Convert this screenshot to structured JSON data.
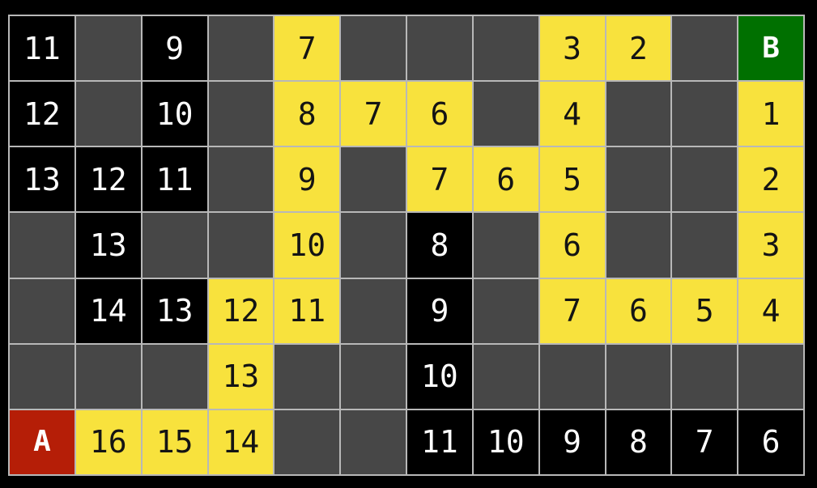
{
  "colors": {
    "background": "#000000",
    "gridline": "#b8b8b8",
    "wall": "#474747",
    "explored": "#000000",
    "explored_text": "#ffffff",
    "path": "#f8e23d",
    "path_text": "#141414",
    "start": "#b51e07",
    "goal": "#007000",
    "start_goal_text": "#ffffff"
  },
  "grid": {
    "cols": 12,
    "rows_count": 7,
    "start_label": "A",
    "goal_label": "B",
    "rows": [
      [
        {
          "v": "11",
          "t": "explored"
        },
        {
          "v": "",
          "t": "wall"
        },
        {
          "v": "9",
          "t": "explored"
        },
        {
          "v": "",
          "t": "wall"
        },
        {
          "v": "7",
          "t": "path"
        },
        {
          "v": "",
          "t": "wall"
        },
        {
          "v": "",
          "t": "wall"
        },
        {
          "v": "",
          "t": "wall"
        },
        {
          "v": "3",
          "t": "path"
        },
        {
          "v": "2",
          "t": "path"
        },
        {
          "v": "",
          "t": "wall"
        },
        {
          "v": "B",
          "t": "goal"
        }
      ],
      [
        {
          "v": "12",
          "t": "explored"
        },
        {
          "v": "",
          "t": "wall"
        },
        {
          "v": "10",
          "t": "explored"
        },
        {
          "v": "",
          "t": "wall"
        },
        {
          "v": "8",
          "t": "path"
        },
        {
          "v": "7",
          "t": "path"
        },
        {
          "v": "6",
          "t": "path"
        },
        {
          "v": "",
          "t": "wall"
        },
        {
          "v": "4",
          "t": "path"
        },
        {
          "v": "",
          "t": "wall"
        },
        {
          "v": "",
          "t": "wall"
        },
        {
          "v": "1",
          "t": "path"
        }
      ],
      [
        {
          "v": "13",
          "t": "explored"
        },
        {
          "v": "12",
          "t": "explored"
        },
        {
          "v": "11",
          "t": "explored"
        },
        {
          "v": "",
          "t": "wall"
        },
        {
          "v": "9",
          "t": "path"
        },
        {
          "v": "",
          "t": "wall"
        },
        {
          "v": "7",
          "t": "path"
        },
        {
          "v": "6",
          "t": "path"
        },
        {
          "v": "5",
          "t": "path"
        },
        {
          "v": "",
          "t": "wall"
        },
        {
          "v": "",
          "t": "wall"
        },
        {
          "v": "2",
          "t": "path"
        }
      ],
      [
        {
          "v": "",
          "t": "wall"
        },
        {
          "v": "13",
          "t": "explored"
        },
        {
          "v": "",
          "t": "wall"
        },
        {
          "v": "",
          "t": "wall"
        },
        {
          "v": "10",
          "t": "path"
        },
        {
          "v": "",
          "t": "wall"
        },
        {
          "v": "8",
          "t": "explored"
        },
        {
          "v": "",
          "t": "wall"
        },
        {
          "v": "6",
          "t": "path"
        },
        {
          "v": "",
          "t": "wall"
        },
        {
          "v": "",
          "t": "wall"
        },
        {
          "v": "3",
          "t": "path"
        }
      ],
      [
        {
          "v": "",
          "t": "wall"
        },
        {
          "v": "14",
          "t": "explored"
        },
        {
          "v": "13",
          "t": "explored"
        },
        {
          "v": "12",
          "t": "path"
        },
        {
          "v": "11",
          "t": "path"
        },
        {
          "v": "",
          "t": "wall"
        },
        {
          "v": "9",
          "t": "explored"
        },
        {
          "v": "",
          "t": "wall"
        },
        {
          "v": "7",
          "t": "path"
        },
        {
          "v": "6",
          "t": "path"
        },
        {
          "v": "5",
          "t": "path"
        },
        {
          "v": "4",
          "t": "path"
        }
      ],
      [
        {
          "v": "",
          "t": "wall"
        },
        {
          "v": "",
          "t": "wall"
        },
        {
          "v": "",
          "t": "wall"
        },
        {
          "v": "13",
          "t": "path"
        },
        {
          "v": "",
          "t": "wall"
        },
        {
          "v": "",
          "t": "wall"
        },
        {
          "v": "10",
          "t": "explored"
        },
        {
          "v": "",
          "t": "wall"
        },
        {
          "v": "",
          "t": "wall"
        },
        {
          "v": "",
          "t": "wall"
        },
        {
          "v": "",
          "t": "wall"
        },
        {
          "v": "",
          "t": "wall"
        }
      ],
      [
        {
          "v": "A",
          "t": "start"
        },
        {
          "v": "16",
          "t": "path"
        },
        {
          "v": "15",
          "t": "path"
        },
        {
          "v": "14",
          "t": "path"
        },
        {
          "v": "",
          "t": "wall"
        },
        {
          "v": "",
          "t": "wall"
        },
        {
          "v": "11",
          "t": "explored"
        },
        {
          "v": "10",
          "t": "explored"
        },
        {
          "v": "9",
          "t": "explored"
        },
        {
          "v": "8",
          "t": "explored"
        },
        {
          "v": "7",
          "t": "explored"
        },
        {
          "v": "6",
          "t": "explored"
        }
      ]
    ]
  }
}
